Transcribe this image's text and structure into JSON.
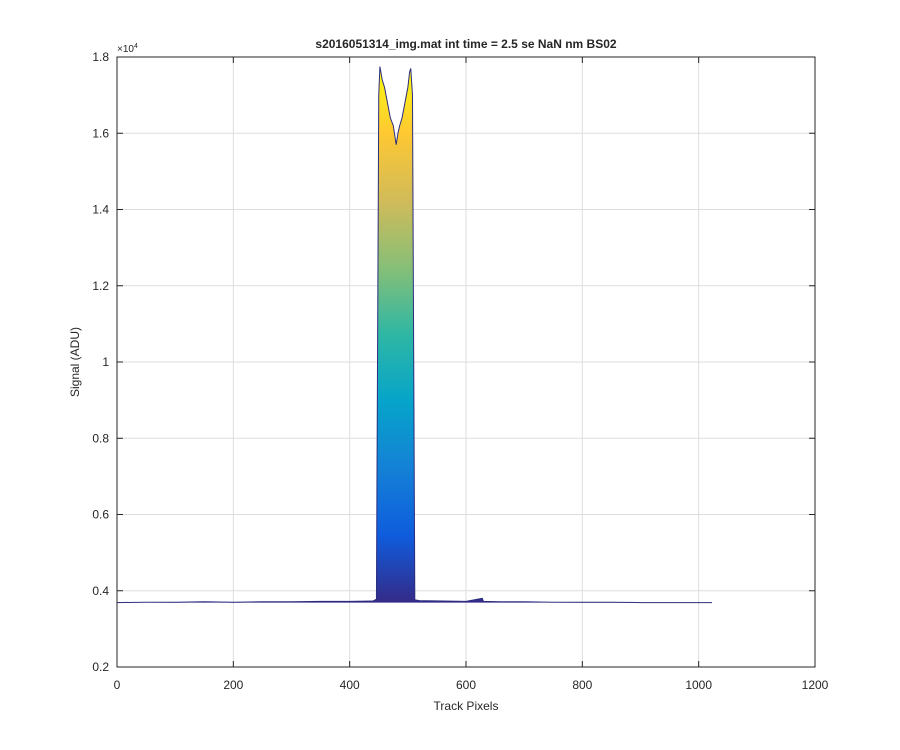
{
  "chart_data": {
    "type": "line",
    "title": "s2016051314_img.mat int time = 2.5 se  NaN nm BS02",
    "x_label": "Track Pixels",
    "y_label": "Signal (ADU)",
    "y_multiplier": {
      "base": "×10",
      "exponent": "4"
    },
    "x": [
      0,
      50,
      100,
      150,
      200,
      250,
      300,
      350,
      400,
      440,
      446,
      450,
      452,
      456,
      460,
      465,
      470,
      475,
      478,
      480,
      483,
      486,
      490,
      495,
      500,
      503,
      505,
      508,
      512,
      520,
      560,
      600,
      628,
      630,
      660,
      700,
      750,
      800,
      850,
      900,
      950,
      1000,
      1023
    ],
    "values": [
      0.369,
      0.37,
      0.37,
      0.371,
      0.37,
      0.371,
      0.371,
      0.372,
      0.372,
      0.373,
      0.378,
      1.7,
      1.775,
      1.74,
      1.72,
      1.68,
      1.64,
      1.62,
      1.59,
      1.57,
      1.6,
      1.62,
      1.64,
      1.68,
      1.72,
      1.76,
      1.77,
      1.7,
      0.376,
      0.374,
      0.373,
      0.372,
      0.38,
      0.372,
      0.371,
      0.371,
      0.37,
      0.37,
      0.37,
      0.369,
      0.369,
      0.369,
      0.369
    ],
    "color": "#2b2d7e",
    "colormap": [
      "#352a87",
      "#0f5cdd",
      "#1481d6",
      "#06a4ca",
      "#2eb7a4",
      "#87bf77",
      "#d1bb59",
      "#fec832",
      "#f9fb0e"
    ],
    "xlim": [
      0,
      1200
    ],
    "xticks": [
      0,
      200,
      400,
      600,
      800,
      1000,
      1200
    ],
    "ylim": [
      0.2,
      1.8
    ],
    "yticks": [
      0.2,
      0.4,
      0.6,
      0.8,
      1,
      1.2,
      1.4,
      1.6,
      1.8
    ],
    "grid": true
  }
}
